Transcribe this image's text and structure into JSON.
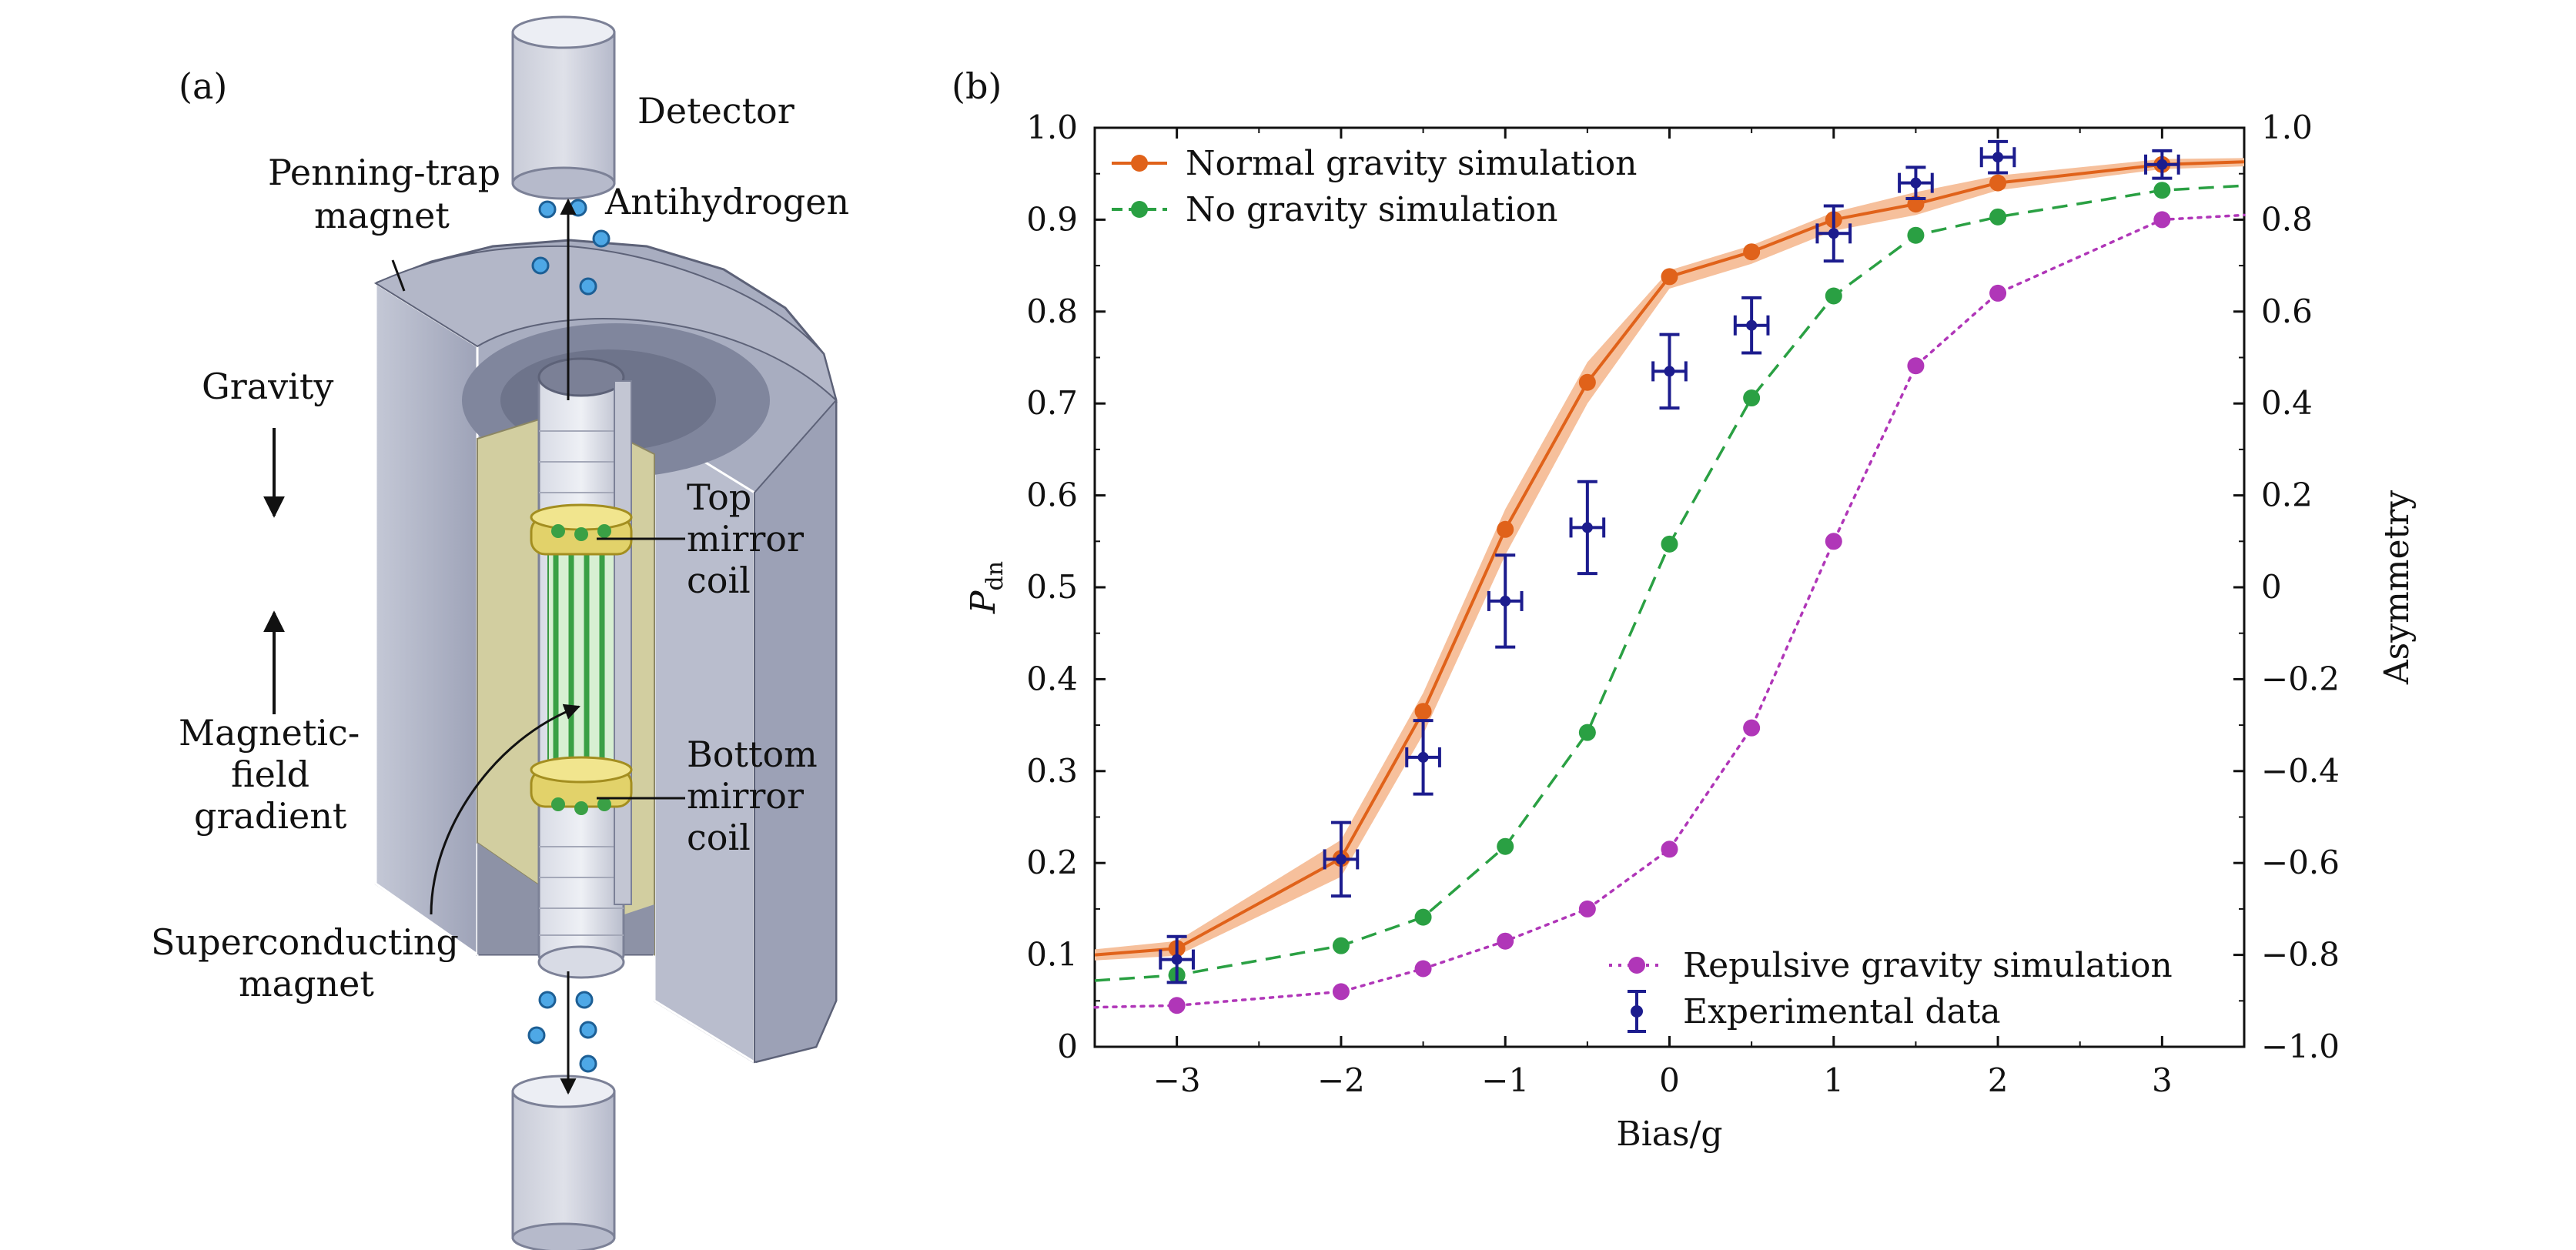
{
  "panel_a": {
    "label": "(a)",
    "labels": {
      "detector": "Detector",
      "penning_1": "Penning-trap",
      "penning_2": "magnet",
      "antihydrogen": "Antihydrogen",
      "gravity": "Gravity",
      "top_coil_1": "Top",
      "top_coil_2": "mirror",
      "top_coil_3": "coil",
      "magfield_1": "Magnetic-",
      "magfield_2": "field",
      "magfield_3": "gradient",
      "bottom_coil_1": "Bottom",
      "bottom_coil_2": "mirror",
      "bottom_coil_3": "coil",
      "sc_1": "Superconducting",
      "sc_2": "magnet"
    }
  },
  "panel_b": {
    "label": "(b)"
  },
  "colors": {
    "normal": "#e0621a",
    "normal_band": "#f6c09c",
    "nogravity": "#2aa043",
    "repulsive": "#b036b8",
    "experimental": "#1c1c8e"
  },
  "chart_data": {
    "type": "line",
    "xlabel": "Bias/g",
    "ylabel": "P_dn",
    "ylabel_main": "P",
    "ylabel_sub": "dn",
    "y2label": "Asymmetry",
    "xlim": [
      -3.5,
      3.5
    ],
    "ylim": [
      0,
      1.0
    ],
    "y2lim": [
      -1.0,
      1.0
    ],
    "xticks": [
      -3,
      -2,
      -1,
      0,
      1,
      2,
      3
    ],
    "xtick_labels": [
      "−3",
      "−2",
      "−1",
      "0",
      "1",
      "2",
      "3"
    ],
    "yticks": [
      0,
      0.1,
      0.2,
      0.3,
      0.4,
      0.5,
      0.6,
      0.7,
      0.8,
      0.9,
      1.0
    ],
    "ytick_labels": [
      "0",
      "0.1",
      "0.2",
      "0.3",
      "0.4",
      "0.5",
      "0.6",
      "0.7",
      "0.8",
      "0.9",
      "1.0"
    ],
    "y2ticks": [
      -1.0,
      -0.8,
      -0.6,
      -0.4,
      -0.2,
      0,
      0.2,
      0.4,
      0.6,
      0.8,
      1.0
    ],
    "y2tick_labels": [
      "−1.0",
      "−0.8",
      "−0.6",
      "−0.4",
      "−0.2",
      "0",
      "0.2",
      "0.4",
      "0.6",
      "0.8",
      "1.0"
    ],
    "series": [
      {
        "name": "Normal gravity simulation",
        "style": "solid",
        "x": [
          -3,
          -2,
          -1.5,
          -1,
          -0.5,
          0,
          0.5,
          1,
          1.5,
          2,
          3
        ],
        "y": [
          0.107,
          0.205,
          0.365,
          0.563,
          0.723,
          0.838,
          0.865,
          0.9,
          0.917,
          0.94,
          0.96
        ],
        "curve_x": [
          -3.5,
          -3,
          -2,
          -1.5,
          -1,
          -0.5,
          0,
          0.5,
          1,
          1.5,
          2,
          3,
          3.5
        ],
        "curve_y": [
          0.1,
          0.107,
          0.205,
          0.365,
          0.563,
          0.723,
          0.838,
          0.865,
          0.9,
          0.917,
          0.94,
          0.96,
          0.963
        ],
        "band_upper": [
          0.106,
          0.115,
          0.225,
          0.385,
          0.585,
          0.745,
          0.845,
          0.872,
          0.908,
          0.93,
          0.948,
          0.966,
          0.967
        ],
        "band_lower": [
          0.094,
          0.099,
          0.185,
          0.34,
          0.535,
          0.7,
          0.825,
          0.852,
          0.888,
          0.905,
          0.932,
          0.955,
          0.958
        ]
      },
      {
        "name": "No gravity simulation",
        "style": "dashed",
        "x": [
          -3,
          -2,
          -1.5,
          -1,
          -0.5,
          0,
          0.5,
          1,
          1.5,
          2,
          3
        ],
        "y": [
          0.078,
          0.11,
          0.141,
          0.218,
          0.342,
          0.547,
          0.706,
          0.817,
          0.883,
          0.903,
          0.932
        ],
        "curve_x": [
          -3.5,
          -3,
          -2,
          -1.5,
          -1,
          -0.5,
          0,
          0.5,
          1,
          1.5,
          2,
          3,
          3.5
        ],
        "curve_y": [
          0.072,
          0.078,
          0.11,
          0.141,
          0.218,
          0.342,
          0.547,
          0.706,
          0.817,
          0.883,
          0.903,
          0.932,
          0.937
        ]
      },
      {
        "name": "Repulsive gravity simulation",
        "style": "dotted",
        "x": [
          -3,
          -2,
          -1.5,
          -1,
          -0.5,
          0,
          0.5,
          1,
          1.5,
          2,
          3
        ],
        "y": [
          0.045,
          0.06,
          0.085,
          0.115,
          0.15,
          0.215,
          0.347,
          0.55,
          0.741,
          0.82,
          0.9
        ],
        "curve_x": [
          -3.5,
          -3,
          -2,
          -1.5,
          -1,
          -0.5,
          0,
          0.5,
          1,
          1.5,
          2,
          3,
          3.5
        ],
        "curve_y": [
          0.043,
          0.045,
          0.06,
          0.085,
          0.115,
          0.15,
          0.215,
          0.347,
          0.55,
          0.741,
          0.82,
          0.9,
          0.905
        ]
      },
      {
        "name": "Experimental data",
        "style": "errorbar",
        "x": [
          -3,
          -2,
          -1.5,
          -1,
          -0.5,
          0,
          0.5,
          1,
          1.5,
          2,
          3
        ],
        "y": [
          0.095,
          0.204,
          0.315,
          0.485,
          0.565,
          0.735,
          0.785,
          0.885,
          0.94,
          0.968,
          0.96
        ],
        "yerr": [
          0.025,
          0.04,
          0.04,
          0.05,
          0.05,
          0.04,
          0.03,
          0.03,
          0.017,
          0.017,
          0.015
        ],
        "xerr": [
          0.1,
          0.1,
          0.1,
          0.1,
          0.1,
          0.1,
          0.1,
          0.1,
          0.1,
          0.1,
          0.1
        ]
      }
    ],
    "legend": {
      "upper": [
        "Normal gravity simulation",
        "No gravity simulation"
      ],
      "upper_position": "top-left",
      "lower": [
        "Repulsive gravity simulation",
        "Experimental data"
      ],
      "lower_position": "bottom-right"
    }
  }
}
